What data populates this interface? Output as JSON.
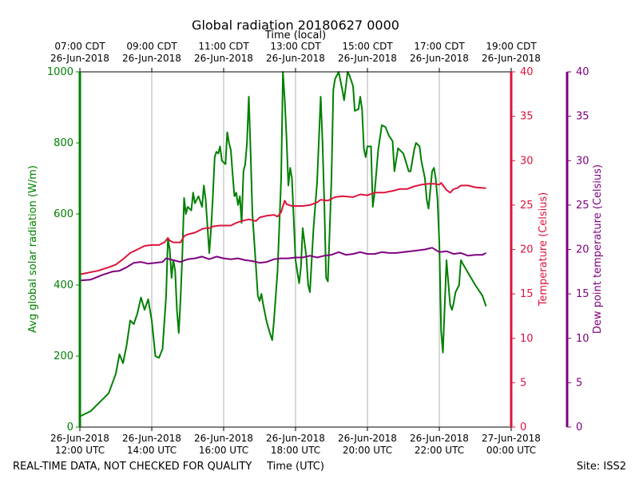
{
  "chart_data": {
    "type": "line",
    "title": "Global radiation 20180627 0000",
    "top_axis_title": "Time (local)",
    "xlabel": "Time (UTC)",
    "ylabel_left": "Avg global solar radiation (W/m)",
    "ylabel_right1": "Temperature (Celsius)",
    "ylabel_right2": "Dew point temperature (Celsius)",
    "x_range_hours_utc": [
      12,
      24
    ],
    "ylim_left": [
      0,
      1000
    ],
    "ylim_right": [
      0,
      40
    ],
    "grid": "vertical",
    "bottom_ticks": [
      {
        "hour": 12,
        "date": "26-Jun-2018",
        "time": "12:00 UTC"
      },
      {
        "hour": 14,
        "date": "26-Jun-2018",
        "time": "14:00 UTC"
      },
      {
        "hour": 16,
        "date": "26-Jun-2018",
        "time": "16:00 UTC"
      },
      {
        "hour": 18,
        "date": "26-Jun-2018",
        "time": "18:00 UTC"
      },
      {
        "hour": 20,
        "date": "26-Jun-2018",
        "time": "20:00 UTC"
      },
      {
        "hour": 22,
        "date": "26-Jun-2018",
        "time": "22:00 UTC"
      },
      {
        "hour": 24,
        "date": "27-Jun-2018",
        "time": "00:00 UTC"
      }
    ],
    "top_ticks": [
      {
        "hour": 12,
        "time": "07:00 CDT",
        "date": "26-Jun-2018"
      },
      {
        "hour": 14,
        "time": "09:00 CDT",
        "date": "26-Jun-2018"
      },
      {
        "hour": 16,
        "time": "11:00 CDT",
        "date": "26-Jun-2018"
      },
      {
        "hour": 18,
        "time": "13:00 CDT",
        "date": "26-Jun-2018"
      },
      {
        "hour": 20,
        "time": "15:00 CDT",
        "date": "26-Jun-2018"
      },
      {
        "hour": 22,
        "time": "17:00 CDT",
        "date": "26-Jun-2018"
      },
      {
        "hour": 24,
        "time": "19:00 CDT",
        "date": "26-Jun-2018"
      }
    ],
    "left_ticks": [
      0,
      200,
      400,
      600,
      800,
      1000
    ],
    "right_ticks": [
      0,
      5,
      10,
      15,
      20,
      25,
      30,
      35,
      40
    ],
    "series": [
      {
        "axis": "left",
        "color": "#008000",
        "points": [
          [
            12.0,
            30
          ],
          [
            12.3,
            45
          ],
          [
            12.6,
            75
          ],
          [
            12.8,
            95
          ],
          [
            13.0,
            150
          ],
          [
            13.1,
            205
          ],
          [
            13.2,
            180
          ],
          [
            13.3,
            230
          ],
          [
            13.4,
            300
          ],
          [
            13.5,
            290
          ],
          [
            13.6,
            320
          ],
          [
            13.7,
            365
          ],
          [
            13.8,
            330
          ],
          [
            13.9,
            360
          ],
          [
            14.0,
            300
          ],
          [
            14.05,
            250
          ],
          [
            14.1,
            200
          ],
          [
            14.2,
            195
          ],
          [
            14.3,
            220
          ],
          [
            14.4,
            370
          ],
          [
            14.45,
            530
          ],
          [
            14.5,
            500
          ],
          [
            14.55,
            420
          ],
          [
            14.6,
            470
          ],
          [
            14.65,
            440
          ],
          [
            14.7,
            330
          ],
          [
            14.75,
            265
          ],
          [
            14.8,
            360
          ],
          [
            14.85,
            480
          ],
          [
            14.9,
            645
          ],
          [
            14.95,
            600
          ],
          [
            15.0,
            620
          ],
          [
            15.1,
            610
          ],
          [
            15.15,
            660
          ],
          [
            15.2,
            630
          ],
          [
            15.3,
            650
          ],
          [
            15.4,
            620
          ],
          [
            15.45,
            680
          ],
          [
            15.5,
            640
          ],
          [
            15.6,
            490
          ],
          [
            15.65,
            560
          ],
          [
            15.7,
            650
          ],
          [
            15.75,
            760
          ],
          [
            15.8,
            775
          ],
          [
            15.85,
            770
          ],
          [
            15.9,
            790
          ],
          [
            15.95,
            750
          ],
          [
            16.05,
            740
          ],
          [
            16.1,
            830
          ],
          [
            16.15,
            800
          ],
          [
            16.2,
            780
          ],
          [
            16.25,
            710
          ],
          [
            16.3,
            650
          ],
          [
            16.35,
            660
          ],
          [
            16.4,
            625
          ],
          [
            16.45,
            650
          ],
          [
            16.5,
            575
          ],
          [
            16.55,
            720
          ],
          [
            16.6,
            740
          ],
          [
            16.65,
            800
          ],
          [
            16.7,
            930
          ],
          [
            16.75,
            770
          ],
          [
            16.8,
            600
          ],
          [
            16.9,
            450
          ],
          [
            16.95,
            370
          ],
          [
            17.0,
            355
          ],
          [
            17.05,
            375
          ],
          [
            17.1,
            345
          ],
          [
            17.2,
            295
          ],
          [
            17.3,
            260
          ],
          [
            17.35,
            245
          ],
          [
            17.4,
            300
          ],
          [
            17.5,
            440
          ],
          [
            17.6,
            700
          ],
          [
            17.65,
            1000
          ],
          [
            17.7,
            920
          ],
          [
            17.75,
            810
          ],
          [
            17.8,
            680
          ],
          [
            17.85,
            730
          ],
          [
            17.9,
            700
          ],
          [
            18.0,
            470
          ],
          [
            18.1,
            405
          ],
          [
            18.15,
            450
          ],
          [
            18.2,
            560
          ],
          [
            18.3,
            480
          ],
          [
            18.35,
            400
          ],
          [
            18.4,
            380
          ],
          [
            18.5,
            560
          ],
          [
            18.6,
            690
          ],
          [
            18.7,
            930
          ],
          [
            18.75,
            800
          ],
          [
            18.8,
            630
          ],
          [
            18.85,
            420
          ],
          [
            18.9,
            410
          ],
          [
            19.0,
            700
          ],
          [
            19.05,
            950
          ],
          [
            19.1,
            980
          ],
          [
            19.2,
            1000
          ],
          [
            19.3,
            950
          ],
          [
            19.35,
            920
          ],
          [
            19.45,
            1000
          ],
          [
            19.5,
            990
          ],
          [
            19.6,
            960
          ],
          [
            19.65,
            890
          ],
          [
            19.75,
            895
          ],
          [
            19.8,
            930
          ],
          [
            19.85,
            895
          ],
          [
            19.9,
            785
          ],
          [
            19.95,
            760
          ],
          [
            20.0,
            790
          ],
          [
            20.1,
            790
          ],
          [
            20.15,
            620
          ],
          [
            20.2,
            660
          ],
          [
            20.3,
            780
          ],
          [
            20.4,
            850
          ],
          [
            20.5,
            845
          ],
          [
            20.6,
            820
          ],
          [
            20.7,
            805
          ],
          [
            20.75,
            720
          ],
          [
            20.85,
            785
          ],
          [
            21.0,
            770
          ],
          [
            21.15,
            720
          ],
          [
            21.2,
            720
          ],
          [
            21.3,
            780
          ],
          [
            21.35,
            800
          ],
          [
            21.45,
            790
          ],
          [
            21.5,
            750
          ],
          [
            21.6,
            700
          ],
          [
            21.65,
            640
          ],
          [
            21.7,
            615
          ],
          [
            21.8,
            720
          ],
          [
            21.85,
            730
          ],
          [
            21.9,
            700
          ],
          [
            21.95,
            640
          ],
          [
            22.0,
            520
          ],
          [
            22.05,
            270
          ],
          [
            22.1,
            210
          ],
          [
            22.2,
            470
          ],
          [
            22.3,
            345
          ],
          [
            22.35,
            330
          ],
          [
            22.4,
            350
          ],
          [
            22.45,
            380
          ],
          [
            22.55,
            400
          ],
          [
            22.6,
            470
          ],
          [
            22.65,
            460
          ],
          [
            23.0,
            400
          ],
          [
            23.2,
            370
          ],
          [
            23.3,
            340
          ]
        ]
      },
      {
        "axis": "right",
        "color": "#dc143c",
        "points": [
          [
            12.0,
            17.2
          ],
          [
            12.5,
            17.6
          ],
          [
            12.8,
            18.0
          ],
          [
            13.0,
            18.3
          ],
          [
            13.2,
            18.9
          ],
          [
            13.4,
            19.6
          ],
          [
            13.6,
            20.0
          ],
          [
            13.8,
            20.4
          ],
          [
            14.0,
            20.5
          ],
          [
            14.2,
            20.5
          ],
          [
            14.35,
            20.8
          ],
          [
            14.45,
            21.3
          ],
          [
            14.5,
            21.0
          ],
          [
            14.6,
            20.8
          ],
          [
            14.7,
            20.8
          ],
          [
            14.8,
            20.8
          ],
          [
            14.9,
            21.5
          ],
          [
            15.0,
            21.7
          ],
          [
            15.2,
            21.9
          ],
          [
            15.4,
            22.3
          ],
          [
            15.5,
            22.4
          ],
          [
            15.6,
            22.4
          ],
          [
            15.7,
            22.6
          ],
          [
            15.9,
            22.7
          ],
          [
            16.1,
            22.7
          ],
          [
            16.2,
            22.7
          ],
          [
            16.35,
            23.0
          ],
          [
            16.5,
            23.2
          ],
          [
            16.7,
            23.4
          ],
          [
            16.8,
            23.3
          ],
          [
            16.9,
            23.2
          ],
          [
            17.0,
            23.6
          ],
          [
            17.2,
            23.8
          ],
          [
            17.4,
            23.9
          ],
          [
            17.5,
            23.7
          ],
          [
            17.6,
            24.2
          ],
          [
            17.65,
            24.9
          ],
          [
            17.7,
            25.5
          ],
          [
            17.75,
            25.1
          ],
          [
            17.9,
            24.9
          ],
          [
            18.2,
            24.9
          ],
          [
            18.4,
            25.0
          ],
          [
            18.6,
            25.3
          ],
          [
            18.7,
            25.6
          ],
          [
            18.9,
            25.5
          ],
          [
            19.1,
            25.9
          ],
          [
            19.3,
            26.0
          ],
          [
            19.6,
            25.9
          ],
          [
            19.8,
            26.2
          ],
          [
            20.0,
            26.1
          ],
          [
            20.2,
            26.4
          ],
          [
            20.45,
            26.4
          ],
          [
            20.7,
            26.6
          ],
          [
            20.9,
            26.8
          ],
          [
            21.1,
            26.8
          ],
          [
            21.3,
            27.1
          ],
          [
            21.5,
            27.3
          ],
          [
            21.7,
            27.4
          ],
          [
            21.85,
            27.4
          ],
          [
            22.0,
            27.3
          ],
          [
            22.05,
            27.5
          ],
          [
            22.2,
            26.7
          ],
          [
            22.3,
            26.4
          ],
          [
            22.4,
            26.8
          ],
          [
            22.5,
            26.9
          ],
          [
            22.6,
            27.2
          ],
          [
            22.8,
            27.2
          ],
          [
            23.0,
            27.0
          ],
          [
            23.3,
            26.9
          ]
        ]
      },
      {
        "axis": "right",
        "color": "#800080",
        "points": [
          [
            12.0,
            16.5
          ],
          [
            12.3,
            16.6
          ],
          [
            12.6,
            17.1
          ],
          [
            12.9,
            17.5
          ],
          [
            13.1,
            17.6
          ],
          [
            13.3,
            18.0
          ],
          [
            13.5,
            18.5
          ],
          [
            13.7,
            18.6
          ],
          [
            13.9,
            18.4
          ],
          [
            14.1,
            18.5
          ],
          [
            14.3,
            18.6
          ],
          [
            14.4,
            19.0
          ],
          [
            14.6,
            18.8
          ],
          [
            14.8,
            18.6
          ],
          [
            15.0,
            18.9
          ],
          [
            15.2,
            19.0
          ],
          [
            15.4,
            19.2
          ],
          [
            15.6,
            18.9
          ],
          [
            15.8,
            19.2
          ],
          [
            16.0,
            19.0
          ],
          [
            16.2,
            18.9
          ],
          [
            16.4,
            19.0
          ],
          [
            16.6,
            18.8
          ],
          [
            16.8,
            18.7
          ],
          [
            17.0,
            18.5
          ],
          [
            17.2,
            18.6
          ],
          [
            17.4,
            18.9
          ],
          [
            17.6,
            19.0
          ],
          [
            17.8,
            19.0
          ],
          [
            18.0,
            19.1
          ],
          [
            18.2,
            19.1
          ],
          [
            18.4,
            19.3
          ],
          [
            18.6,
            19.1
          ],
          [
            18.8,
            19.3
          ],
          [
            19.0,
            19.4
          ],
          [
            19.2,
            19.7
          ],
          [
            19.4,
            19.4
          ],
          [
            19.6,
            19.5
          ],
          [
            19.8,
            19.7
          ],
          [
            20.0,
            19.5
          ],
          [
            20.2,
            19.5
          ],
          [
            20.4,
            19.7
          ],
          [
            20.6,
            19.6
          ],
          [
            20.8,
            19.6
          ],
          [
            21.0,
            19.7
          ],
          [
            21.2,
            19.8
          ],
          [
            21.4,
            19.9
          ],
          [
            21.6,
            20.0
          ],
          [
            21.7,
            20.1
          ],
          [
            21.8,
            20.2
          ],
          [
            22.0,
            19.7
          ],
          [
            22.2,
            19.8
          ],
          [
            22.4,
            19.5
          ],
          [
            22.6,
            19.6
          ],
          [
            22.8,
            19.3
          ],
          [
            23.0,
            19.4
          ],
          [
            23.2,
            19.4
          ],
          [
            23.3,
            19.6
          ]
        ]
      }
    ]
  },
  "footer": {
    "left_note": "REAL-TIME DATA, NOT CHECKED FOR QUALITY",
    "site": "Site: ISS2"
  }
}
